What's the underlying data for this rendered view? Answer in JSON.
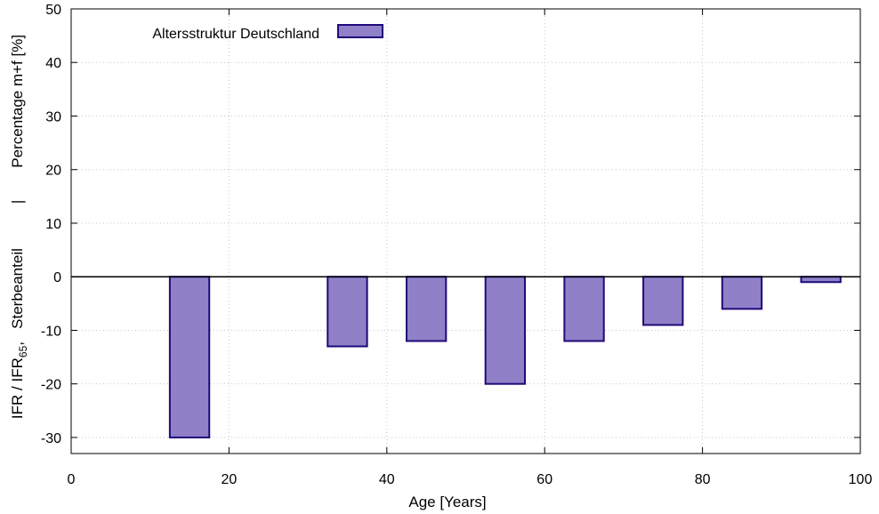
{
  "chart_data": {
    "type": "bar",
    "xlabel": "Age [Years]",
    "ylabel": {
      "top_prefix": "IFR / IFR",
      "top_subscript": "65",
      "top_suffix": ",   Sterbeanteil",
      "separator": "|",
      "bottom": "Percentage m+f [%]"
    },
    "xlim": [
      0,
      100
    ],
    "ylim": [
      -33,
      50
    ],
    "xticks": [
      0,
      20,
      40,
      60,
      80,
      100
    ],
    "yticks": [
      -30,
      -20,
      -10,
      0,
      10,
      20,
      30,
      40,
      50
    ],
    "grid": true,
    "legend_position": "top-left",
    "bar_width": 5,
    "series": [
      {
        "name": "Altersstruktur Deutschland",
        "color": "#9080c8",
        "edge_color": "#1f0a7a",
        "points": [
          {
            "x": 15,
            "y": -30
          },
          {
            "x": 35,
            "y": -13
          },
          {
            "x": 45,
            "y": -12
          },
          {
            "x": 55,
            "y": -20
          },
          {
            "x": 65,
            "y": -12
          },
          {
            "x": 75,
            "y": -9
          },
          {
            "x": 85,
            "y": -6
          },
          {
            "x": 95,
            "y": -1
          }
        ]
      }
    ]
  }
}
